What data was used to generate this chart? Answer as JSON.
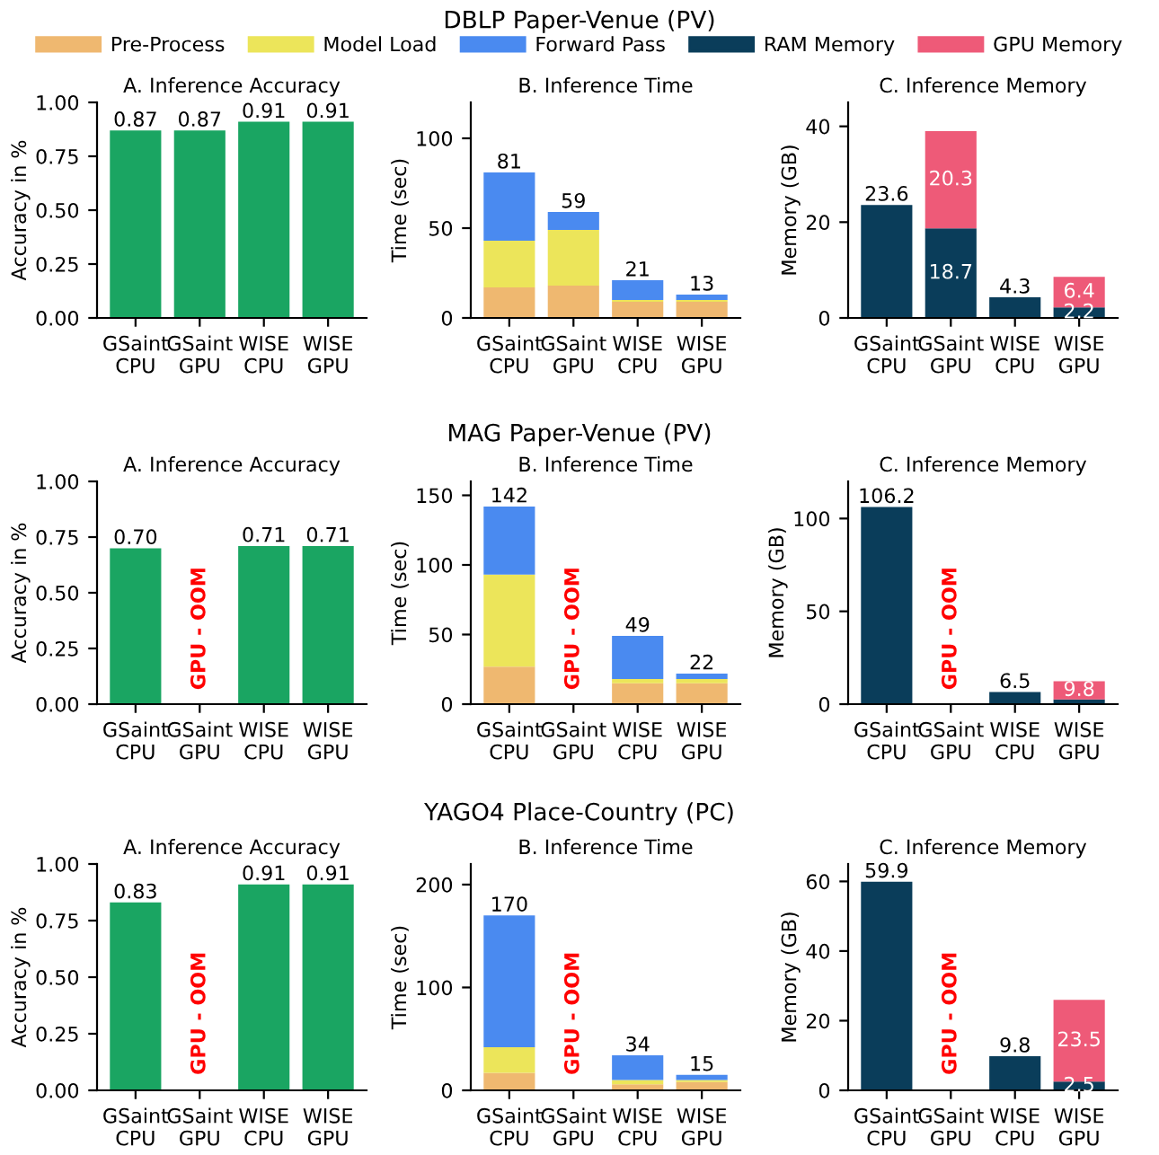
{
  "chart_data": [
    {
      "type": "bar",
      "title": "A. Inference Accuracy",
      "categories": [
        "GSaint\nCPU",
        "GSaint\nGPU",
        "WISE\nCPU",
        "WISE\nGPU"
      ],
      "values": [
        0.87,
        0.87,
        0.91,
        0.91
      ],
      "value_labels": [
        "0.87",
        "0.87",
        "0.91",
        "0.91"
      ],
      "color": "#1aa562",
      "ylabel": "Accuracy in %",
      "ylim": [
        0,
        1
      ],
      "yticks": [
        {
          "value": 0,
          "label": "0.00"
        },
        {
          "value": 0.25,
          "label": "0.25"
        },
        {
          "value": 0.5,
          "label": "0.50"
        },
        {
          "value": 0.75,
          "label": "0.75"
        },
        {
          "value": 1,
          "label": "1.00"
        }
      ]
    },
    {
      "type": "bar",
      "subtitle": "DBLP Paper-Venue (PV)",
      "title": "B. Inference Time",
      "categories": [
        "GSaint\nCPU",
        "GSaint\nGPU",
        "WISE\nCPU",
        "WISE\nGPU"
      ],
      "stacked": true,
      "legend": "top",
      "series": [
        {
          "name": "Pre-Process",
          "color": "#efb870",
          "values": [
            17,
            18,
            9,
            9
          ]
        },
        {
          "name": "Model Load",
          "color": "#ece55a",
          "values": [
            26,
            31,
            1,
            1
          ]
        },
        {
          "name": "Forward Pass",
          "color": "#4a8af0",
          "values": [
            38,
            10,
            11,
            3
          ]
        }
      ],
      "totals": [
        "81",
        "59",
        "21",
        "13"
      ],
      "ylabel": "Time (sec)",
      "ylim": [
        0,
        120
      ],
      "yticks": [
        0,
        50,
        100
      ]
    },
    {
      "type": "bar",
      "title": "C. Inference Memory",
      "categories": [
        "GSaint\nCPU",
        "GSaint\nGPU",
        "WISE\nCPU",
        "WISE\nGPU"
      ],
      "stacked": true,
      "legend": "top",
      "series": [
        {
          "name": "RAM Memory",
          "color": "#0a3d5a",
          "values": [
            23.6,
            18.7,
            4.3,
            2.2
          ],
          "value_labels": [
            "23.6",
            "18.7",
            "4.3",
            "2.2"
          ]
        },
        {
          "name": "GPU Memory",
          "color": "#ee5a78",
          "values": [
            null,
            20.3,
            null,
            6.4
          ],
          "value_labels": [
            null,
            "20.3",
            null,
            "6.4"
          ]
        }
      ],
      "ylabel": "Memory (GB)",
      "ylim": [
        0,
        45
      ],
      "yticks": [
        0,
        20,
        40
      ]
    },
    {
      "type": "bar",
      "title": "A. Inference Accuracy",
      "categories": [
        "GSaint\nCPU",
        "GSaint\nGPU",
        "WISE\nCPU",
        "WISE\nGPU"
      ],
      "values": [
        0.7,
        null,
        0.71,
        0.71
      ],
      "value_labels": [
        "0.70",
        null,
        "0.71",
        "0.71"
      ],
      "color": "#1aa562",
      "ylabel": "Accuracy in %",
      "ylim": [
        0,
        1
      ],
      "yticks": [
        {
          "value": 0,
          "label": "0.00"
        },
        {
          "value": 0.25,
          "label": "0.25"
        },
        {
          "value": 0.5,
          "label": "0.50"
        },
        {
          "value": 0.75,
          "label": "0.75"
        },
        {
          "value": 1,
          "label": "1.00"
        }
      ],
      "annotations": [
        "GPU - OOM"
      ]
    },
    {
      "type": "bar",
      "subtitle": "MAG Paper-Venue (PV)",
      "title": "B. Inference Time",
      "categories": [
        "GSaint\nCPU",
        "GSaint\nGPU",
        "WISE\nCPU",
        "WISE\nGPU"
      ],
      "stacked": true,
      "series": [
        {
          "color": "#efb870",
          "values": [
            27,
            null,
            15,
            15
          ]
        },
        {
          "color": "#ece55a",
          "values": [
            66,
            null,
            3,
            3
          ]
        },
        {
          "color": "#4a8af0",
          "values": [
            49,
            null,
            31,
            4
          ]
        }
      ],
      "totals": [
        "142",
        null,
        "49",
        "22"
      ],
      "ylabel": "Time (sec)",
      "ylim": [
        0,
        160
      ],
      "yticks": [
        0,
        50,
        100,
        150
      ],
      "annotations": [
        "GPU - OOM"
      ]
    },
    {
      "type": "bar",
      "title": "C. Inference Memory",
      "categories": [
        "GSaint\nCPU",
        "GSaint\nGPU",
        "WISE\nCPU",
        "WISE\nGPU"
      ],
      "stacked": true,
      "series": [
        {
          "color": "#0a3d5a",
          "values": [
            106.2,
            null,
            6.5,
            2.5
          ],
          "value_labels": [
            "106.2",
            null,
            "6.5",
            null
          ]
        },
        {
          "color": "#ee5a78",
          "values": [
            null,
            null,
            null,
            9.8
          ],
          "value_labels": [
            null,
            null,
            null,
            "9.8"
          ]
        }
      ],
      "ylabel": "Memory (GB)",
      "ylim": [
        0,
        120
      ],
      "yticks": [
        0,
        50,
        100
      ],
      "annotations": [
        "GPU - OOM"
      ]
    },
    {
      "type": "bar",
      "title": "A. Inference Accuracy",
      "categories": [
        "GSaint\nCPU",
        "GSaint\nGPU",
        "WISE\nCPU",
        "WISE\nGPU"
      ],
      "values": [
        0.83,
        null,
        0.91,
        0.91
      ],
      "value_labels": [
        "0.83",
        null,
        "0.91",
        "0.91"
      ],
      "color": "#1aa562",
      "ylabel": "Accuracy in %",
      "ylim": [
        0,
        1
      ],
      "yticks": [
        {
          "value": 0,
          "label": "0.00"
        },
        {
          "value": 0.25,
          "label": "0.25"
        },
        {
          "value": 0.5,
          "label": "0.50"
        },
        {
          "value": 0.75,
          "label": "0.75"
        },
        {
          "value": 1,
          "label": "1.00"
        }
      ],
      "annotations": [
        "GPU - OOM"
      ]
    },
    {
      "type": "bar",
      "subtitle": "YAGO4 Place-Country (PC)",
      "title": "B. Inference Time",
      "categories": [
        "GSaint\nCPU",
        "GSaint\nGPU",
        "WISE\nCPU",
        "WISE\nGPU"
      ],
      "stacked": true,
      "series": [
        {
          "color": "#efb870",
          "values": [
            17,
            null,
            6,
            8
          ]
        },
        {
          "color": "#ece55a",
          "values": [
            25,
            null,
            4,
            2
          ]
        },
        {
          "color": "#4a8af0",
          "values": [
            128,
            null,
            24,
            5
          ]
        }
      ],
      "totals": [
        "170",
        null,
        "34",
        "15"
      ],
      "ylabel": "Time (sec)",
      "ylim": [
        0,
        220
      ],
      "yticks": [
        0,
        100,
        200
      ],
      "annotations": [
        "GPU - OOM"
      ]
    },
    {
      "type": "bar",
      "title": "C. Inference Memory",
      "categories": [
        "GSaint\nCPU",
        "GSaint\nGPU",
        "WISE\nCPU",
        "WISE\nGPU"
      ],
      "stacked": true,
      "series": [
        {
          "color": "#0a3d5a",
          "values": [
            59.9,
            null,
            9.8,
            2.5
          ],
          "value_labels": [
            "59.9",
            null,
            "9.8",
            "2.5"
          ]
        },
        {
          "color": "#ee5a78",
          "values": [
            null,
            null,
            null,
            23.5
          ],
          "value_labels": [
            null,
            null,
            null,
            "23.5"
          ]
        }
      ],
      "ylabel": "Memory (GB)",
      "ylim": [
        0,
        65
      ],
      "yticks": [
        0,
        20,
        40,
        60
      ],
      "annotations": [
        "GPU - OOM"
      ]
    }
  ]
}
